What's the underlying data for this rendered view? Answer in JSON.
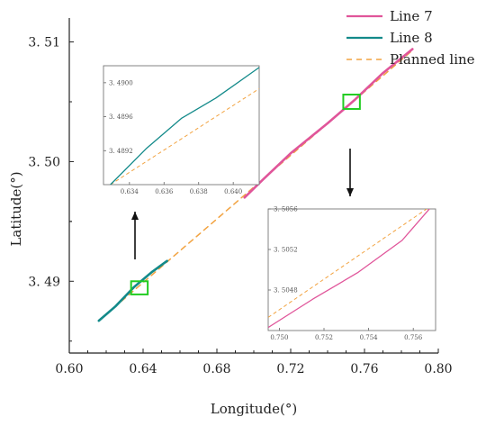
{
  "chart_data": {
    "type": "line",
    "xlabel": "Longitude(°)",
    "ylabel": "Latitude(°)",
    "xlim": [
      0.6,
      0.8
    ],
    "ylim": [
      3.484,
      3.512
    ],
    "xticks": [
      "0.60",
      "0.64",
      "0.68",
      "0.72",
      "0.76",
      "0.80"
    ],
    "yticks": [
      "3. 49",
      "3. 50",
      "3. 51"
    ],
    "colors": {
      "line7": "#e0559a",
      "line8": "#138a8a",
      "planned": "#f2a341",
      "highlight": "#22cc22"
    },
    "legend": {
      "position": "top-right",
      "entries": [
        "Line 7",
        "Line 8",
        "Planned line"
      ]
    },
    "series": [
      {
        "name": "Line 8",
        "style": "solid",
        "x": [
          0.616,
          0.625,
          0.635,
          0.645,
          0.653
        ],
        "y": [
          3.4867,
          3.4879,
          3.4895,
          3.4908,
          3.4917
        ]
      },
      {
        "name": "Planned line",
        "style": "dashed",
        "x": [
          0.616,
          0.786
        ],
        "y": [
          3.4867,
          3.5093
        ]
      },
      {
        "name": "Line 7",
        "style": "solid",
        "x": [
          0.695,
          0.705,
          0.72,
          0.74,
          0.755,
          0.77,
          0.786
        ],
        "y": [
          3.497,
          3.4985,
          3.5007,
          3.5032,
          3.5052,
          3.5074,
          3.5094
        ]
      }
    ],
    "highlight_boxes": [
      {
        "x": [
          0.6335,
          0.6425
        ],
        "y": [
          3.4889,
          3.49
        ]
      },
      {
        "x": [
          0.7485,
          0.7575
        ],
        "y": [
          3.5044,
          3.5056
        ]
      }
    ],
    "insets": [
      {
        "xlim": [
          0.6325,
          0.6415
        ],
        "ylim": [
          3.4888,
          3.4902
        ],
        "xticks": [
          "0.634",
          "0.636",
          "0.638",
          "0.640"
        ],
        "yticks": [
          "3. 4892",
          "3. 4896",
          "3. 4900"
        ],
        "series": [
          {
            "name": "Line 8",
            "x": [
              0.6329,
              0.635,
              0.637,
              0.639,
              0.6415
            ],
            "y": [
              3.4888,
              3.48923,
              3.48958,
              3.48982,
              3.49018
            ]
          },
          {
            "name": "Planned line",
            "x": [
              0.6329,
              0.6415
            ],
            "y": [
              3.4888,
              3.48993
            ]
          }
        ]
      },
      {
        "xlim": [
          0.7495,
          0.757
        ],
        "ylim": [
          3.5044,
          3.5056
        ],
        "xticks": [
          "0.750",
          "0.752",
          "0.754",
          "0.756"
        ],
        "yticks": [
          "3. 5048",
          "3. 5052",
          "3. 5056"
        ],
        "series": [
          {
            "name": "Line 7",
            "x": [
              0.7495,
              0.7515,
              0.7535,
              0.7555,
              0.7568
            ],
            "y": [
              3.50443,
              3.50471,
              3.50497,
              3.50529,
              3.50562
            ]
          },
          {
            "name": "Planned line",
            "x": [
              0.7495,
              0.7568
            ],
            "y": [
              3.50453,
              3.50563
            ]
          }
        ]
      }
    ]
  }
}
